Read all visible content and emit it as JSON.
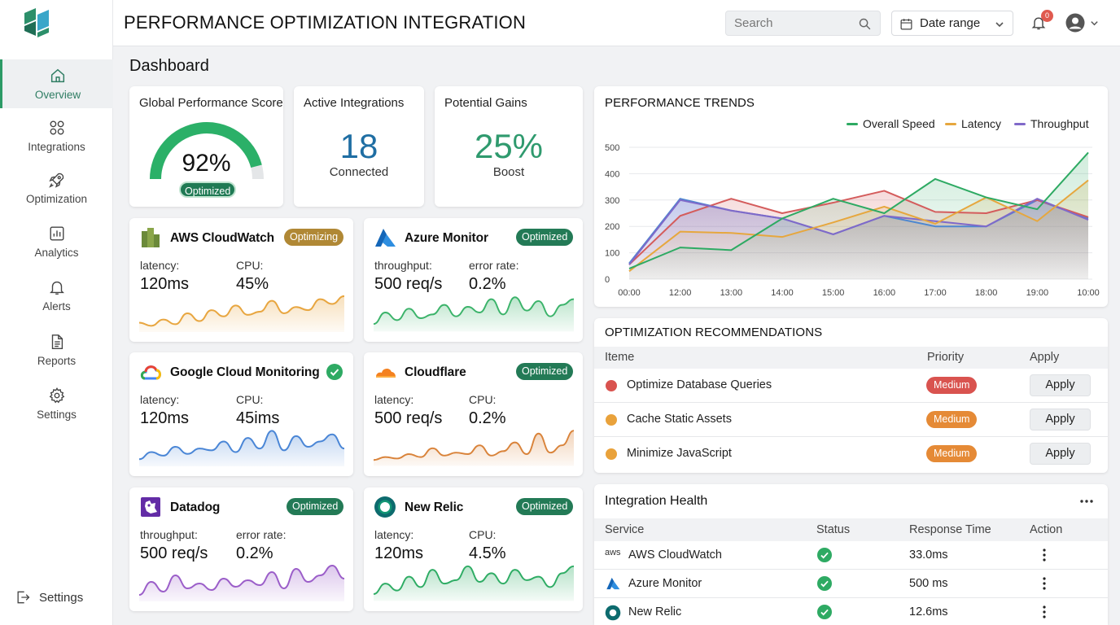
{
  "app": {
    "title": "PERFORMANCE OPTIMIZATION INTEGRATION",
    "page_title": "Dashboard"
  },
  "header": {
    "search_placeholder": "Search",
    "date_range_label": "Date range",
    "notification_count": "0"
  },
  "sidebar": {
    "items": [
      {
        "label": "Overview",
        "icon": "home-icon",
        "active": true
      },
      {
        "label": "Integrations",
        "icon": "integrations-icon"
      },
      {
        "label": "Optimization",
        "icon": "rocket-icon"
      },
      {
        "label": "Analytics",
        "icon": "analytics-icon"
      },
      {
        "label": "Alerts",
        "icon": "bell-icon"
      },
      {
        "label": "Reports",
        "icon": "document-icon"
      },
      {
        "label": "Settings",
        "icon": "gear-icon"
      }
    ],
    "bottom_label": "Settings"
  },
  "kpis": {
    "score": {
      "title": "Global Performance Score",
      "value": "92%",
      "badge": "Optimized",
      "level": 0.92
    },
    "integrations": {
      "title": "Active Integrations",
      "value": "18",
      "sub": "Connected"
    },
    "gains": {
      "title": "Potential Gains",
      "value": "25%",
      "sub": "Boost"
    }
  },
  "integrations": [
    {
      "name": "AWS CloudWatch",
      "status": "Optimizing",
      "status_kind": "amber",
      "m1_label": "latency:",
      "m1_value": "120ms",
      "m2_label": "CPU:",
      "m2_value": "45%",
      "color": "#e8a640",
      "spark": [
        12,
        10,
        14,
        11,
        18,
        13,
        20,
        16,
        23,
        17,
        19,
        26,
        18,
        22,
        20,
        27,
        24,
        29
      ]
    },
    {
      "name": "Azure Monitor",
      "status": "Optimized",
      "status_kind": "green",
      "m1_label": "throughput:",
      "m1_value": "500 req/s",
      "m2_label": "error rate:",
      "m2_value": "0.2%",
      "color": "#3bb36a",
      "spark": [
        12,
        18,
        14,
        20,
        15,
        17,
        22,
        16,
        21,
        18,
        25,
        17,
        26,
        19,
        24,
        16,
        22,
        25
      ]
    },
    {
      "name": "Google Cloud Monitoring",
      "status": "",
      "status_kind": "check",
      "m1_label": "latency:",
      "m1_value": "120ms",
      "m2_label": "CPU:",
      "m2_value": "45ims",
      "color": "#4a86d6",
      "spark": [
        8,
        12,
        10,
        15,
        11,
        14,
        13,
        18,
        12,
        20,
        14,
        24,
        13,
        21,
        15,
        18,
        22,
        14
      ]
    },
    {
      "name": "Cloudflare",
      "status": "Optimized",
      "status_kind": "green",
      "m1_label": "latency:",
      "m1_value": "500 req/s",
      "m2_label": "CPU:",
      "m2_value": "0.2%",
      "color": "#d9833a",
      "spark": [
        10,
        12,
        11,
        14,
        12,
        18,
        13,
        15,
        14,
        20,
        13,
        16,
        22,
        14,
        28,
        15,
        20,
        30
      ]
    },
    {
      "name": "Datadog",
      "status": "Optimized",
      "status_kind": "green",
      "m1_label": "throughput:",
      "m1_value": "500 req/s",
      "m2_label": "error rate:",
      "m2_value": "0.2%",
      "color": "#9b5ec9",
      "spark": [
        10,
        18,
        12,
        22,
        14,
        17,
        13,
        20,
        15,
        19,
        16,
        24,
        14,
        26,
        18,
        22,
        28,
        20
      ]
    },
    {
      "name": "New Relic",
      "status": "Optimized",
      "status_kind": "green",
      "m1_label": "latency:",
      "m1_value": "120ms",
      "m2_label": "CPU:",
      "m2_value": "4.5%",
      "color": "#2eac64",
      "spark": [
        8,
        14,
        10,
        18,
        12,
        22,
        14,
        16,
        24,
        15,
        20,
        14,
        22,
        16,
        18,
        12,
        20,
        24
      ]
    }
  ],
  "trends": {
    "title": "PERFORMANCE TRENDS",
    "chart_data": {
      "type": "line",
      "x": [
        "00:00",
        "12:00",
        "13:00",
        "14:00",
        "15:00",
        "16:00",
        "17:00",
        "18:00",
        "19:00",
        "10:00"
      ],
      "ylim": [
        0,
        500
      ],
      "yticks": [
        "0",
        "100",
        "200",
        "300",
        "400",
        "500"
      ],
      "series": [
        {
          "name": "Overall Speed",
          "color": "#2eaa63",
          "values": [
            40,
            120,
            110,
            230,
            305,
            250,
            380,
            310,
            265,
            480
          ]
        },
        {
          "name": "Latency",
          "color": "#e6a73e",
          "values": [
            30,
            180,
            175,
            160,
            215,
            275,
            210,
            310,
            220,
            375
          ]
        },
        {
          "name": "Throughput",
          "color": "#8069c9",
          "values": [
            55,
            300,
            260,
            230,
            170,
            240,
            220,
            200,
            305,
            225
          ]
        },
        {
          "name": "",
          "color": "#d45c5c",
          "values": [
            55,
            240,
            305,
            250,
            290,
            335,
            255,
            250,
            300,
            235
          ]
        },
        {
          "name": "",
          "color": "#4d87d0",
          "values": [
            60,
            305,
            260,
            230,
            170,
            240,
            200,
            200,
            300,
            230
          ]
        }
      ]
    }
  },
  "recommendations": {
    "title": "OPTIMIZATION RECOMMENDATIONS",
    "headers": {
      "item": "Iteme",
      "priority": "Priority",
      "apply": "Apply"
    },
    "rows": [
      {
        "text": "Optimize Database Queries",
        "priority": "Medium",
        "dot_color": "#d9534f",
        "pill_color": "#d9534f",
        "apply": "Apply"
      },
      {
        "text": "Cache Static Assets",
        "priority": "Medium",
        "dot_color": "#e9a23b",
        "pill_color": "#e58a36",
        "apply": "Apply"
      },
      {
        "text": "Minimize JavaScript",
        "priority": "Medium",
        "dot_color": "#e9a23b",
        "pill_color": "#e58a36",
        "apply": "Apply"
      }
    ]
  },
  "health": {
    "title": "Integration Health",
    "headers": {
      "service": "Service",
      "status": "Status",
      "response": "Response Time",
      "action": "Action"
    },
    "rows": [
      {
        "service": "AWS CloudWatch",
        "logo_text": "aws",
        "response": "33.0ms"
      },
      {
        "service": "Azure Monitor",
        "response": "500 ms"
      },
      {
        "service": "New Relic",
        "response": "12.6ms"
      }
    ]
  }
}
